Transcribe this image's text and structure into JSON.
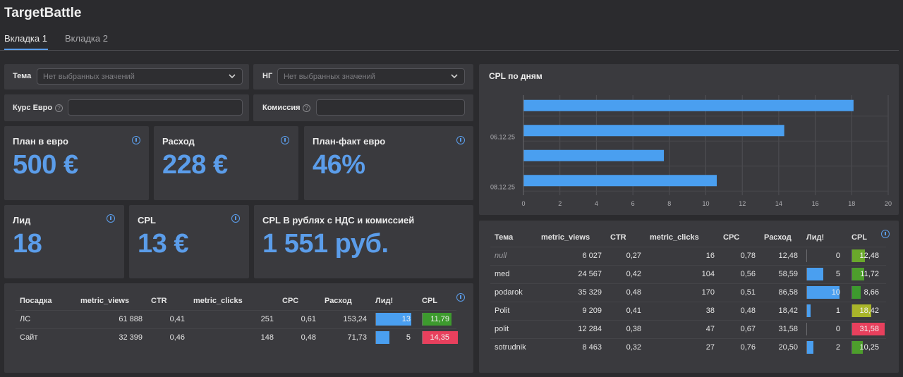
{
  "app": {
    "title": "TargetBattle"
  },
  "tabs": [
    {
      "label": "Вкладка 1"
    },
    {
      "label": "Вкладка 2"
    }
  ],
  "filters": {
    "tema": {
      "label": "Тема",
      "placeholder": "Нет выбранных значений"
    },
    "ng": {
      "label": "НГ",
      "placeholder": "Нет выбранных значений"
    },
    "kurs": {
      "label": "Курс Евро",
      "value": ""
    },
    "komissiya": {
      "label": "Комиссия",
      "value": ""
    }
  },
  "kpis": {
    "plan": {
      "title": "План в евро",
      "value": "500 €"
    },
    "rashod": {
      "title": "Расход",
      "value": "228 €"
    },
    "planfakt": {
      "title": "План-факт евро",
      "value": "46%"
    },
    "lid": {
      "title": "Лид",
      "value": "18"
    },
    "cpl": {
      "title": "CPL",
      "value": "13 €"
    },
    "cpl_rub": {
      "title": "CPL В рублях с НДС и комиссией",
      "value": "1 551 руб."
    }
  },
  "posadka_table": {
    "columns": [
      "Посадка",
      "metric_views",
      "CTR",
      "metric_clicks",
      "CPC",
      "Расход",
      "Лид!",
      "CPL"
    ],
    "rows": [
      {
        "name": "ЛС",
        "views": "61 888",
        "ctr": "0,41",
        "clicks": "251",
        "cpc": "0,61",
        "rashod": "153,24",
        "lid": "13",
        "lid_frac": 1.0,
        "cpl": "11,79",
        "cpl_frac": 0.82,
        "cpl_color": "#3d9a2e"
      },
      {
        "name": "Сайт",
        "views": "32 399",
        "ctr": "0,46",
        "clicks": "148",
        "cpc": "0,48",
        "rashod": "71,73",
        "lid": "5",
        "lid_frac": 0.38,
        "cpl": "14,35",
        "cpl_frac": 1.0,
        "cpl_color": "#e8405d"
      }
    ]
  },
  "tema_table": {
    "columns": [
      "Тема",
      "metric_views",
      "CTR",
      "metric_clicks",
      "CPC",
      "Расход",
      "Лид!",
      "CPL"
    ],
    "rows": [
      {
        "name": "null",
        "italic": true,
        "views": "6 027",
        "ctr": "0,27",
        "clicks": "16",
        "cpc": "0,78",
        "rashod": "12,48",
        "lid": "0",
        "lid_frac": 0.0,
        "cpl": "12,48",
        "cpl_frac": 0.4,
        "cpl_color": "#6aa82b"
      },
      {
        "name": "med",
        "views": "24 567",
        "ctr": "0,42",
        "clicks": "104",
        "cpc": "0,56",
        "rashod": "58,59",
        "lid": "5",
        "lid_frac": 0.5,
        "cpl": "11,72",
        "cpl_frac": 0.37,
        "cpl_color": "#4d9e2c"
      },
      {
        "name": "podarok",
        "views": "35 329",
        "ctr": "0,48",
        "clicks": "170",
        "cpc": "0,51",
        "rashod": "86,58",
        "lid": "10",
        "lid_frac": 1.0,
        "cpl": "8,66",
        "cpl_frac": 0.27,
        "cpl_color": "#3d9a2e"
      },
      {
        "name": "Polit",
        "views": "9 209",
        "ctr": "0,41",
        "clicks": "38",
        "cpc": "0,48",
        "rashod": "18,42",
        "lid": "1",
        "lid_frac": 0.1,
        "cpl": "18,42",
        "cpl_frac": 0.58,
        "cpl_color": "#a9b52a"
      },
      {
        "name": "polit",
        "views": "12 284",
        "ctr": "0,38",
        "clicks": "47",
        "cpc": "0,67",
        "rashod": "31,58",
        "lid": "0",
        "lid_frac": 0.0,
        "cpl": "31,58",
        "cpl_frac": 1.0,
        "cpl_color": "#e8405d"
      },
      {
        "name": "sotrudnik",
        "views": "8 463",
        "ctr": "0,32",
        "clicks": "27",
        "cpc": "0,76",
        "rashod": "20,50",
        "lid": "2",
        "lid_frac": 0.2,
        "cpl": "10,25",
        "cpl_frac": 0.32,
        "cpl_color": "#4d9e2c"
      }
    ]
  },
  "chart_data": {
    "type": "bar",
    "orientation": "horizontal",
    "title": "CPL по дням",
    "categories": [
      "",
      "06.12.25",
      "",
      "08.12.25"
    ],
    "values": [
      18.1,
      14.3,
      7.7,
      10.6
    ],
    "xlim": [
      0,
      20
    ],
    "xticks": [
      0,
      2,
      4,
      6,
      8,
      10,
      12,
      14,
      16,
      18,
      20
    ],
    "grid": true,
    "color": "#4a9ff0"
  }
}
